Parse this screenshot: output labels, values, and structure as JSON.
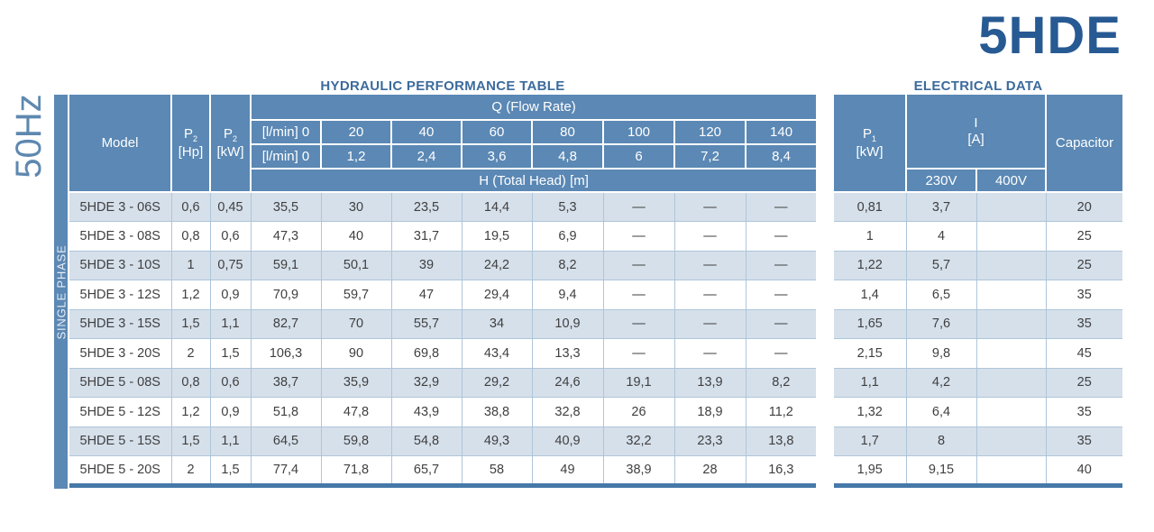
{
  "brand": {
    "title": "5HDE"
  },
  "freq_label": "50Hz",
  "phase_label": "SINGLE PHASE",
  "hydraulic": {
    "title": "HYDRAULIC PERFORMANCE TABLE",
    "model_header": "Model",
    "p2_hp": {
      "sym": "P",
      "sub": "2",
      "unit": "[Hp]"
    },
    "p2_kw": {
      "sym": "P",
      "sub": "2",
      "unit": "[kW]"
    },
    "q_group": "Q (Flow Rate)",
    "h_group": "H (Total Head) [m]",
    "flow_rows": [
      {
        "unit": "[l/min] 0",
        "values": [
          "20",
          "40",
          "60",
          "80",
          "100",
          "120",
          "140"
        ]
      },
      {
        "unit": "[l/min] 0",
        "values": [
          "1,2",
          "2,4",
          "3,6",
          "4,8",
          "6",
          "7,2",
          "8,4"
        ]
      }
    ]
  },
  "electrical": {
    "title": "ELECTRICAL DATA",
    "p1": {
      "sym": "P",
      "sub": "1",
      "unit": "[kW]"
    },
    "i_group": {
      "sym": "I",
      "unit": "[A]"
    },
    "volt_headers": [
      "230V",
      "400V"
    ],
    "capacitor_header": "Capacitor"
  },
  "rows": [
    {
      "model": "5HDE 3 - 06S",
      "p2_hp": "0,6",
      "p2_kw": "0,45",
      "head": [
        "35,5",
        "30",
        "23,5",
        "14,4",
        "5,3",
        "—",
        "—",
        "—"
      ],
      "p1": "0,81",
      "i_230": "3,7",
      "i_400": "",
      "capacitor": "20"
    },
    {
      "model": "5HDE 3 - 08S",
      "p2_hp": "0,8",
      "p2_kw": "0,6",
      "head": [
        "47,3",
        "40",
        "31,7",
        "19,5",
        "6,9",
        "—",
        "—",
        "—"
      ],
      "p1": "1",
      "i_230": "4",
      "i_400": "",
      "capacitor": "25"
    },
    {
      "model": "5HDE 3 - 10S",
      "p2_hp": "1",
      "p2_kw": "0,75",
      "head": [
        "59,1",
        "50,1",
        "39",
        "24,2",
        "8,2",
        "—",
        "—",
        "—"
      ],
      "p1": "1,22",
      "i_230": "5,7",
      "i_400": "",
      "capacitor": "25"
    },
    {
      "model": "5HDE 3 - 12S",
      "p2_hp": "1,2",
      "p2_kw": "0,9",
      "head": [
        "70,9",
        "59,7",
        "47",
        "29,4",
        "9,4",
        "—",
        "—",
        "—"
      ],
      "p1": "1,4",
      "i_230": "6,5",
      "i_400": "",
      "capacitor": "35"
    },
    {
      "model": "5HDE 3 - 15S",
      "p2_hp": "1,5",
      "p2_kw": "1,1",
      "head": [
        "82,7",
        "70",
        "55,7",
        "34",
        "10,9",
        "—",
        "—",
        "—"
      ],
      "p1": "1,65",
      "i_230": "7,6",
      "i_400": "",
      "capacitor": "35"
    },
    {
      "model": "5HDE 3 - 20S",
      "p2_hp": "2",
      "p2_kw": "1,5",
      "head": [
        "106,3",
        "90",
        "69,8",
        "43,4",
        "13,3",
        "—",
        "—",
        "—"
      ],
      "p1": "2,15",
      "i_230": "9,8",
      "i_400": "",
      "capacitor": "45"
    },
    {
      "model": "5HDE 5 - 08S",
      "p2_hp": "0,8",
      "p2_kw": "0,6",
      "head": [
        "38,7",
        "35,9",
        "32,9",
        "29,2",
        "24,6",
        "19,1",
        "13,9",
        "8,2"
      ],
      "p1": "1,1",
      "i_230": "4,2",
      "i_400": "",
      "capacitor": "25"
    },
    {
      "model": "5HDE 5 - 12S",
      "p2_hp": "1,2",
      "p2_kw": "0,9",
      "head": [
        "51,8",
        "47,8",
        "43,9",
        "38,8",
        "32,8",
        "26",
        "18,9",
        "11,2"
      ],
      "p1": "1,32",
      "i_230": "6,4",
      "i_400": "",
      "capacitor": "35"
    },
    {
      "model": "5HDE 5 - 15S",
      "p2_hp": "1,5",
      "p2_kw": "1,1",
      "head": [
        "64,5",
        "59,8",
        "54,8",
        "49,3",
        "40,9",
        "32,2",
        "23,3",
        "13,8"
      ],
      "p1": "1,7",
      "i_230": "8",
      "i_400": "",
      "capacitor": "35"
    },
    {
      "model": "5HDE 5 - 20S",
      "p2_hp": "2",
      "p2_kw": "1,5",
      "head": [
        "77,4",
        "71,8",
        "65,7",
        "58",
        "49",
        "38,9",
        "28",
        "16,3"
      ],
      "p1": "1,95",
      "i_230": "9,15",
      "i_400": "",
      "capacitor": "40"
    }
  ],
  "colors": {
    "header_blue": "#5b88b4",
    "row_alt": "#d6e0eb",
    "grid_line": "#aec5d9",
    "navy": "#275a93",
    "section_title": "#3c6b9d",
    "text_dark": "#3f3f3f",
    "thick_border": "#4579a9",
    "freq_blue": "#5e88b0"
  }
}
